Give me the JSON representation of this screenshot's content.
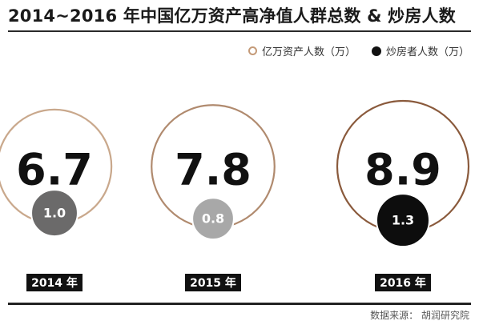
{
  "chart_data": {
    "type": "bubble",
    "title": "2014~2016 年中国亿万资产高净值人群总数 & 炒房人数",
    "categories": [
      "2014 年",
      "2015 年",
      "2016 年"
    ],
    "series": [
      {
        "name": "亿万资产人数（万）",
        "values": [
          6.7,
          7.8,
          8.9
        ],
        "color": "#c49a78"
      },
      {
        "name": "炒房者人数（万）",
        "values": [
          1.0,
          0.8,
          1.3
        ],
        "colors": [
          "#6b6a6a",
          "#a8a8a8",
          "#0d0d0d"
        ]
      }
    ],
    "ring_colors": [
      "#c9a88c",
      "#b08a6e",
      "#8a5a3c"
    ],
    "legend_position": "top-right",
    "source": "数据来源： 胡润研究院"
  }
}
